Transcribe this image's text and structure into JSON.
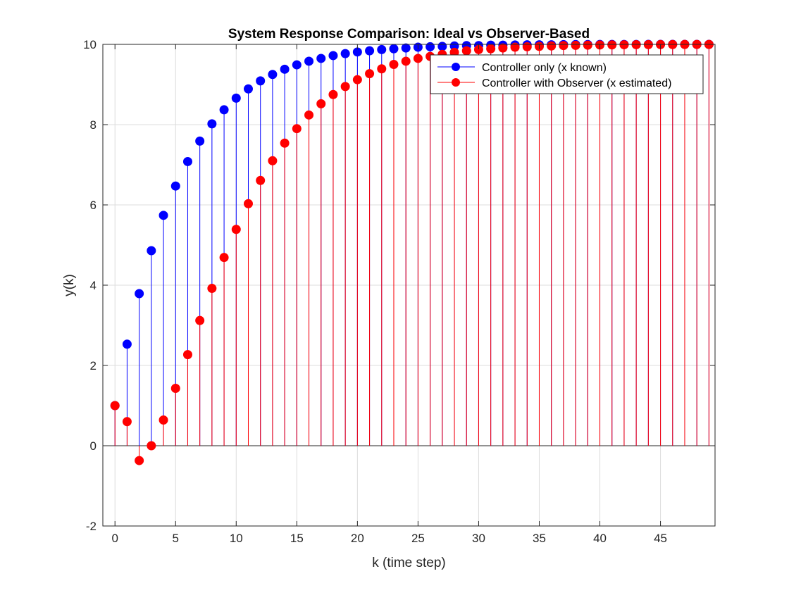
{
  "chart_data": {
    "type": "stem",
    "title": "System Response Comparison: Ideal vs Observer-Based",
    "xlabel": "k (time step)",
    "ylabel": "y(k)",
    "xlim": [
      -1,
      49.5
    ],
    "ylim": [
      -2,
      10
    ],
    "xticks": [
      0,
      5,
      10,
      15,
      20,
      25,
      30,
      35,
      40,
      45
    ],
    "yticks": [
      -2,
      0,
      2,
      4,
      6,
      8,
      10
    ],
    "grid": true,
    "baseline": 0,
    "legend_position": "top-right",
    "x": [
      0,
      1,
      2,
      3,
      4,
      5,
      6,
      7,
      8,
      9,
      10,
      11,
      12,
      13,
      14,
      15,
      16,
      17,
      18,
      19,
      20,
      21,
      22,
      23,
      24,
      25,
      26,
      27,
      28,
      29,
      30,
      31,
      32,
      33,
      34,
      35,
      36,
      37,
      38,
      39,
      40,
      41,
      42,
      43,
      44,
      45,
      46,
      47,
      48,
      49
    ],
    "series": [
      {
        "name": "Controller only (x known)",
        "color": "#0000ff",
        "values": [
          1.0,
          2.53,
          3.79,
          4.86,
          5.74,
          6.47,
          7.08,
          7.59,
          8.02,
          8.37,
          8.66,
          8.89,
          9.09,
          9.25,
          9.38,
          9.49,
          9.58,
          9.65,
          9.72,
          9.77,
          9.81,
          9.84,
          9.87,
          9.89,
          9.91,
          9.93,
          9.94,
          9.95,
          9.96,
          9.97,
          9.97,
          9.98,
          9.98,
          9.985,
          9.99,
          9.99,
          9.99,
          9.993,
          9.995,
          9.996,
          9.997,
          9.997,
          9.998,
          9.998,
          9.999,
          9.999,
          9.999,
          10.0,
          10.0,
          10.0
        ]
      },
      {
        "name": "Controller with Observer (x estimated)",
        "color": "#ff0000",
        "values": [
          1.0,
          0.6,
          -0.37,
          0.0,
          0.64,
          1.43,
          2.27,
          3.12,
          3.92,
          4.69,
          5.39,
          6.03,
          6.61,
          7.1,
          7.54,
          7.9,
          8.24,
          8.52,
          8.75,
          8.95,
          9.12,
          9.27,
          9.39,
          9.5,
          9.58,
          9.65,
          9.7,
          9.75,
          9.8,
          9.84,
          9.87,
          9.89,
          9.91,
          9.93,
          9.94,
          9.95,
          9.96,
          9.97,
          9.975,
          9.98,
          9.984,
          9.987,
          9.99,
          9.992,
          9.994,
          9.995,
          9.996,
          9.997,
          9.998,
          9.998
        ]
      }
    ]
  }
}
